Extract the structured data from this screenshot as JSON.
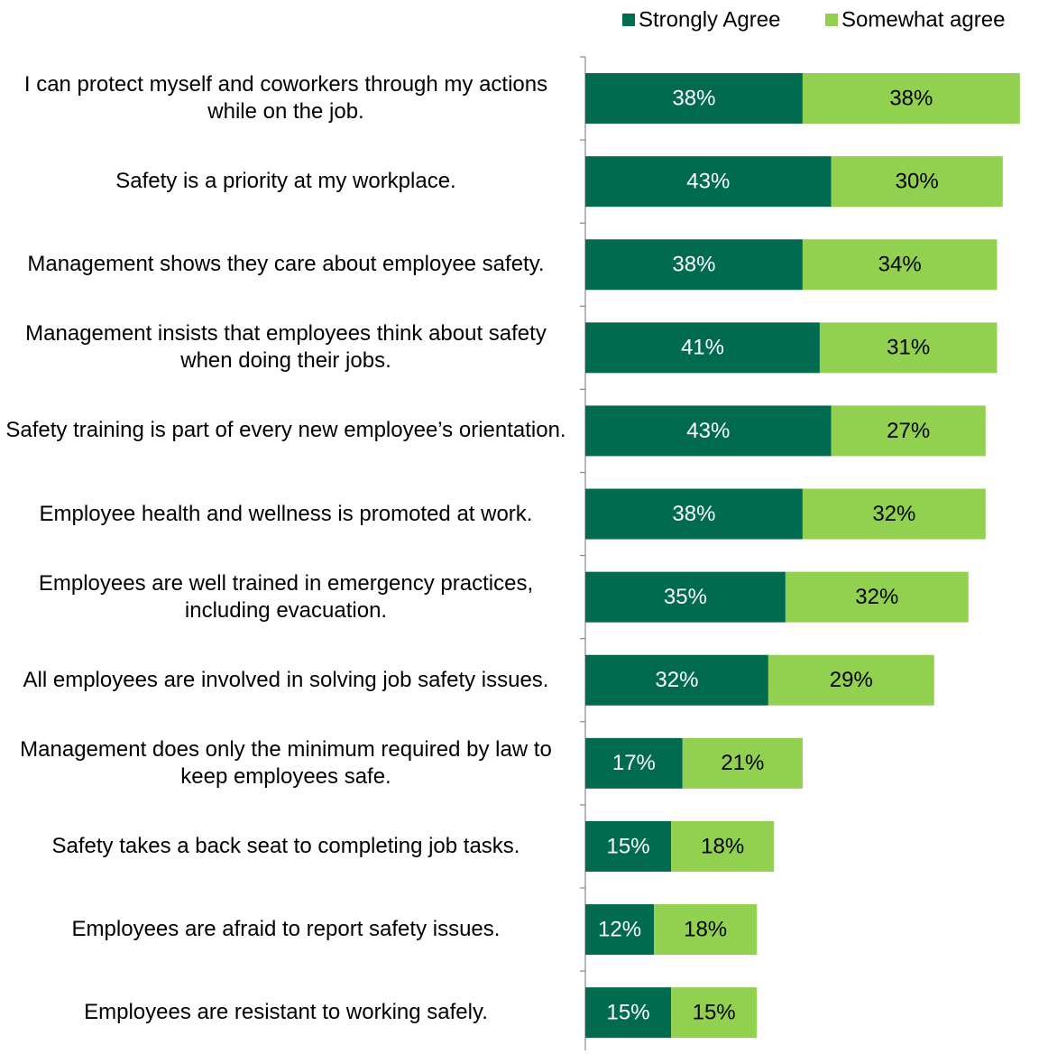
{
  "chart_data": {
    "type": "stacked-bar-horizontal",
    "categories": [
      "I can protect myself and coworkers through my actions while on the job.",
      "Safety is a priority at my workplace.",
      "Management shows they care about employee safety.",
      "Management insists that employees think about safety when doing their jobs.",
      "Safety training is part of every new employee’s orientation.",
      "Employee health and wellness is promoted at work.",
      "Employees are well trained in emergency practices, including evacuation.",
      "All employees are involved in solving job safety issues.",
      "Management does only the minimum required by law to keep employees safe.",
      "Safety takes a back seat to completing job tasks.",
      "Employees are afraid to report safety issues.",
      "Employees are resistant to working safely."
    ],
    "series": [
      {
        "name": "Strongly Agree",
        "color": "#006b4f",
        "label_color": "#ffffff",
        "values": [
          38,
          43,
          38,
          41,
          43,
          38,
          35,
          32,
          17,
          15,
          12,
          15
        ],
        "value_labels": [
          "38%",
          "43%",
          "38%",
          "41%",
          "43%",
          "38%",
          "35%",
          "32%",
          "17%",
          "15%",
          "12%",
          "15%"
        ]
      },
      {
        "name": "Somewhat agree",
        "color": "#92d050",
        "label_color": "#000000",
        "values": [
          38,
          30,
          34,
          31,
          27,
          32,
          32,
          29,
          21,
          18,
          18,
          15
        ],
        "value_labels": [
          "38%",
          "30%",
          "34%",
          "31%",
          "27%",
          "32%",
          "32%",
          "29%",
          "21%",
          "18%",
          "18%",
          "15%"
        ]
      }
    ],
    "xlim": [
      0,
      78
    ],
    "legend": "top-right"
  }
}
